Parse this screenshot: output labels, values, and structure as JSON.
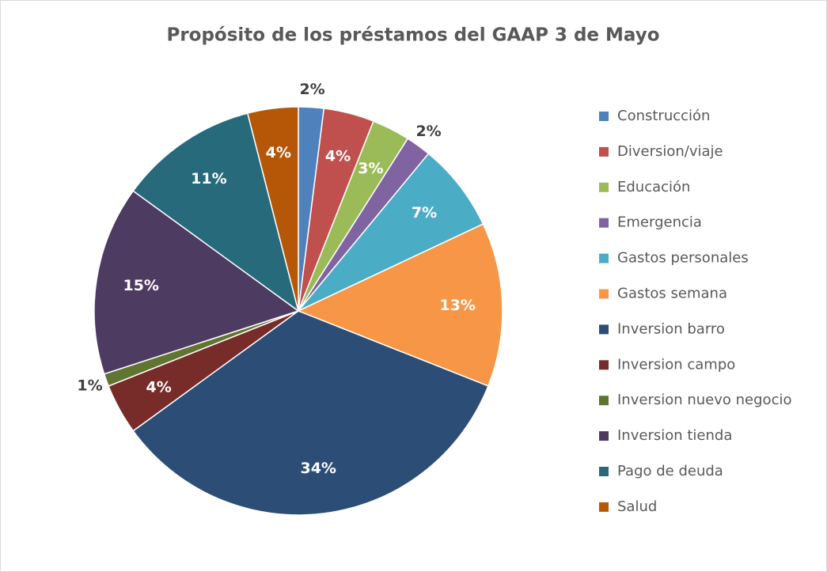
{
  "chart_data": {
    "type": "pie",
    "title": "Propósito de los préstamos del GAAP 3 de Mayo",
    "categories": [
      "Construcción",
      "Diversion/viaje",
      "Educación",
      "Emergencia",
      "Gastos personales",
      "Gastos semana",
      "Inversion barro",
      "Inversion campo",
      "Inversion nuevo negocio",
      "Inversion tienda",
      "Pago de deuda",
      "Salud"
    ],
    "values": [
      2,
      4,
      3,
      2,
      7,
      13,
      34,
      4,
      1,
      15,
      11,
      4
    ],
    "value_labels": [
      "2%",
      "4%",
      "3%",
      "2%",
      "7%",
      "13%",
      "34%",
      "4%",
      "1%",
      "15%",
      "11%",
      "4%"
    ],
    "colors": [
      "#4f81bd",
      "#c0504d",
      "#9bbb59",
      "#8064a2",
      "#4bacc6",
      "#f79646",
      "#2c4d75",
      "#772c2a",
      "#5f7530",
      "#4d3b62",
      "#276a7c",
      "#b65708"
    ],
    "legend": "right"
  }
}
